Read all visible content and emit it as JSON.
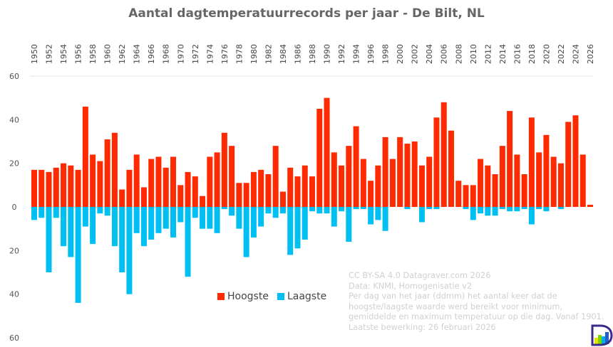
{
  "chart_data": {
    "type": "bar",
    "title": "Aantal dagtemperatuurrecords per jaar - De Bilt, NL",
    "xlabel": "",
    "ylabel": "",
    "ylim": [
      -60,
      60
    ],
    "y_ticks": [
      "60",
      "40",
      "20",
      "0",
      "20",
      "40",
      "60"
    ],
    "y_tick_values": [
      60,
      40,
      20,
      0,
      -20,
      -40,
      -60
    ],
    "x_tick_step": 2,
    "grid": "top line only",
    "legend_placement": "bottom-center",
    "categories": [
      1950,
      1951,
      1952,
      1953,
      1954,
      1955,
      1956,
      1957,
      1958,
      1959,
      1960,
      1961,
      1962,
      1963,
      1964,
      1965,
      1966,
      1967,
      1968,
      1969,
      1970,
      1971,
      1972,
      1973,
      1974,
      1975,
      1976,
      1977,
      1978,
      1979,
      1980,
      1981,
      1982,
      1983,
      1984,
      1985,
      1986,
      1987,
      1988,
      1989,
      1990,
      1991,
      1992,
      1993,
      1994,
      1995,
      1996,
      1997,
      1998,
      1999,
      2000,
      2001,
      2002,
      2003,
      2004,
      2005,
      2006,
      2007,
      2008,
      2009,
      2010,
      2011,
      2012,
      2013,
      2014,
      2015,
      2016,
      2017,
      2018,
      2019,
      2020,
      2021,
      2022,
      2023,
      2024,
      2025,
      2026
    ],
    "series": [
      {
        "name": "Hoogste",
        "color": "#ff2a00",
        "values": [
          17,
          17,
          16,
          18,
          20,
          19,
          17,
          46,
          24,
          21,
          31,
          34,
          8,
          17,
          24,
          9,
          22,
          23,
          18,
          23,
          10,
          16,
          14,
          5,
          23,
          25,
          34,
          28,
          11,
          11,
          16,
          17,
          15,
          28,
          7,
          18,
          14,
          19,
          14,
          45,
          50,
          25,
          19,
          28,
          37,
          22,
          12,
          19,
          32,
          22,
          32,
          29,
          30,
          19,
          23,
          41,
          48,
          35,
          12,
          10,
          10,
          22,
          19,
          15,
          28,
          44,
          24,
          15,
          41,
          25,
          33,
          23,
          20,
          39,
          42,
          24,
          1
        ]
      },
      {
        "name": "Laagste",
        "color": "#00bff2",
        "values": [
          6,
          5,
          30,
          5,
          18,
          23,
          44,
          9,
          17,
          3,
          4,
          18,
          30,
          40,
          12,
          18,
          15,
          12,
          10,
          14,
          7,
          32,
          5,
          10,
          10,
          12,
          1,
          4,
          10,
          23,
          14,
          9,
          3,
          5,
          3,
          22,
          19,
          15,
          2,
          3,
          3,
          9,
          2,
          16,
          1,
          1,
          8,
          6,
          11,
          0,
          0,
          1,
          0,
          7,
          1,
          1,
          0,
          0,
          0,
          1,
          6,
          3,
          4,
          4,
          1,
          2,
          2,
          1,
          8,
          1,
          2,
          0,
          1,
          0,
          0,
          0,
          0
        ]
      }
    ]
  },
  "notes": [
    "CC BY-SA 4.0  Datagraver.com 2026",
    "Data: KNMI, Homogenisatie v2",
    "Per dag van het jaar (ddmm) het aantal keer dat de",
    "hoogste/laagste waarde werd bereikt voor minimum,",
    "gemiddelde en maximum temperatuur op die dag. Vanaf 1901.",
    "Laatste bewerking: 26 februari 2026"
  ],
  "logo": {
    "icon": "datagraver-logo",
    "text": "D"
  }
}
